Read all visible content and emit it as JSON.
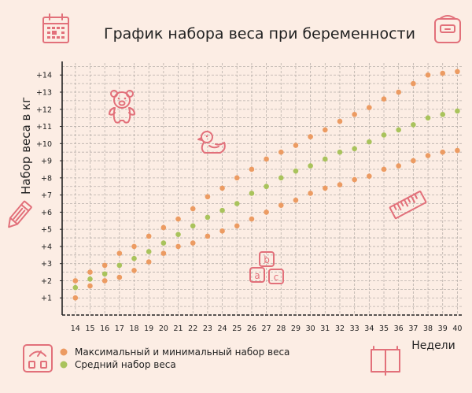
{
  "chart_data": {
    "type": "scatter",
    "title": "График набора веса при беременности",
    "ylabel": "Набор веса в кг",
    "xlabel": "Недели",
    "x": [
      14,
      15,
      16,
      17,
      18,
      19,
      20,
      21,
      22,
      23,
      24,
      25,
      26,
      27,
      28,
      29,
      30,
      31,
      32,
      33,
      34,
      35,
      36,
      37,
      38,
      39,
      40
    ],
    "xlim": [
      13.1,
      40.3
    ],
    "ylim": [
      0,
      14.7
    ],
    "yticks": [
      "+1",
      "+2",
      "+3",
      "+4",
      "+5",
      "+6",
      "+7",
      "+8",
      "+9",
      "+10",
      "+11",
      "+12",
      "+13",
      "+14"
    ],
    "grid": true,
    "series": [
      {
        "name": "Максимальный и минимальный набор веса",
        "color": "#ec9b62",
        "values_max": [
          2.0,
          2.5,
          2.9,
          3.6,
          4.0,
          4.6,
          5.1,
          5.6,
          6.2,
          6.9,
          7.4,
          8.0,
          8.5,
          9.1,
          9.5,
          9.9,
          10.4,
          10.8,
          11.3,
          11.7,
          12.1,
          12.6,
          13.0,
          13.5,
          14.0,
          14.1,
          14.2
        ],
        "values_min": [
          1.0,
          1.7,
          2.0,
          2.2,
          2.6,
          3.1,
          3.6,
          4.0,
          4.2,
          4.6,
          4.9,
          5.2,
          5.6,
          6.0,
          6.4,
          6.7,
          7.1,
          7.4,
          7.6,
          7.9,
          8.1,
          8.5,
          8.7,
          9.0,
          9.3,
          9.5,
          9.6
        ]
      },
      {
        "name": "Средний набор веса",
        "color": "#a9c35c",
        "values": [
          1.6,
          2.1,
          2.4,
          2.9,
          3.3,
          3.7,
          4.2,
          4.7,
          5.2,
          5.7,
          6.1,
          6.5,
          7.1,
          7.5,
          8.0,
          8.4,
          8.7,
          9.1,
          9.5,
          9.7,
          10.1,
          10.5,
          10.8,
          11.1,
          11.5,
          11.7,
          11.9
        ]
      }
    ],
    "legend_position": "bottom-left"
  },
  "icons": {
    "accent": "#e2707a",
    "names": [
      "calendar-icon",
      "scale-icon",
      "pencil-icon",
      "teddy-bear-icon",
      "rubber-duck-icon",
      "ruler-icon",
      "abc-blocks-icon",
      "bathroom-scale-icon",
      "open-book-icon"
    ]
  }
}
